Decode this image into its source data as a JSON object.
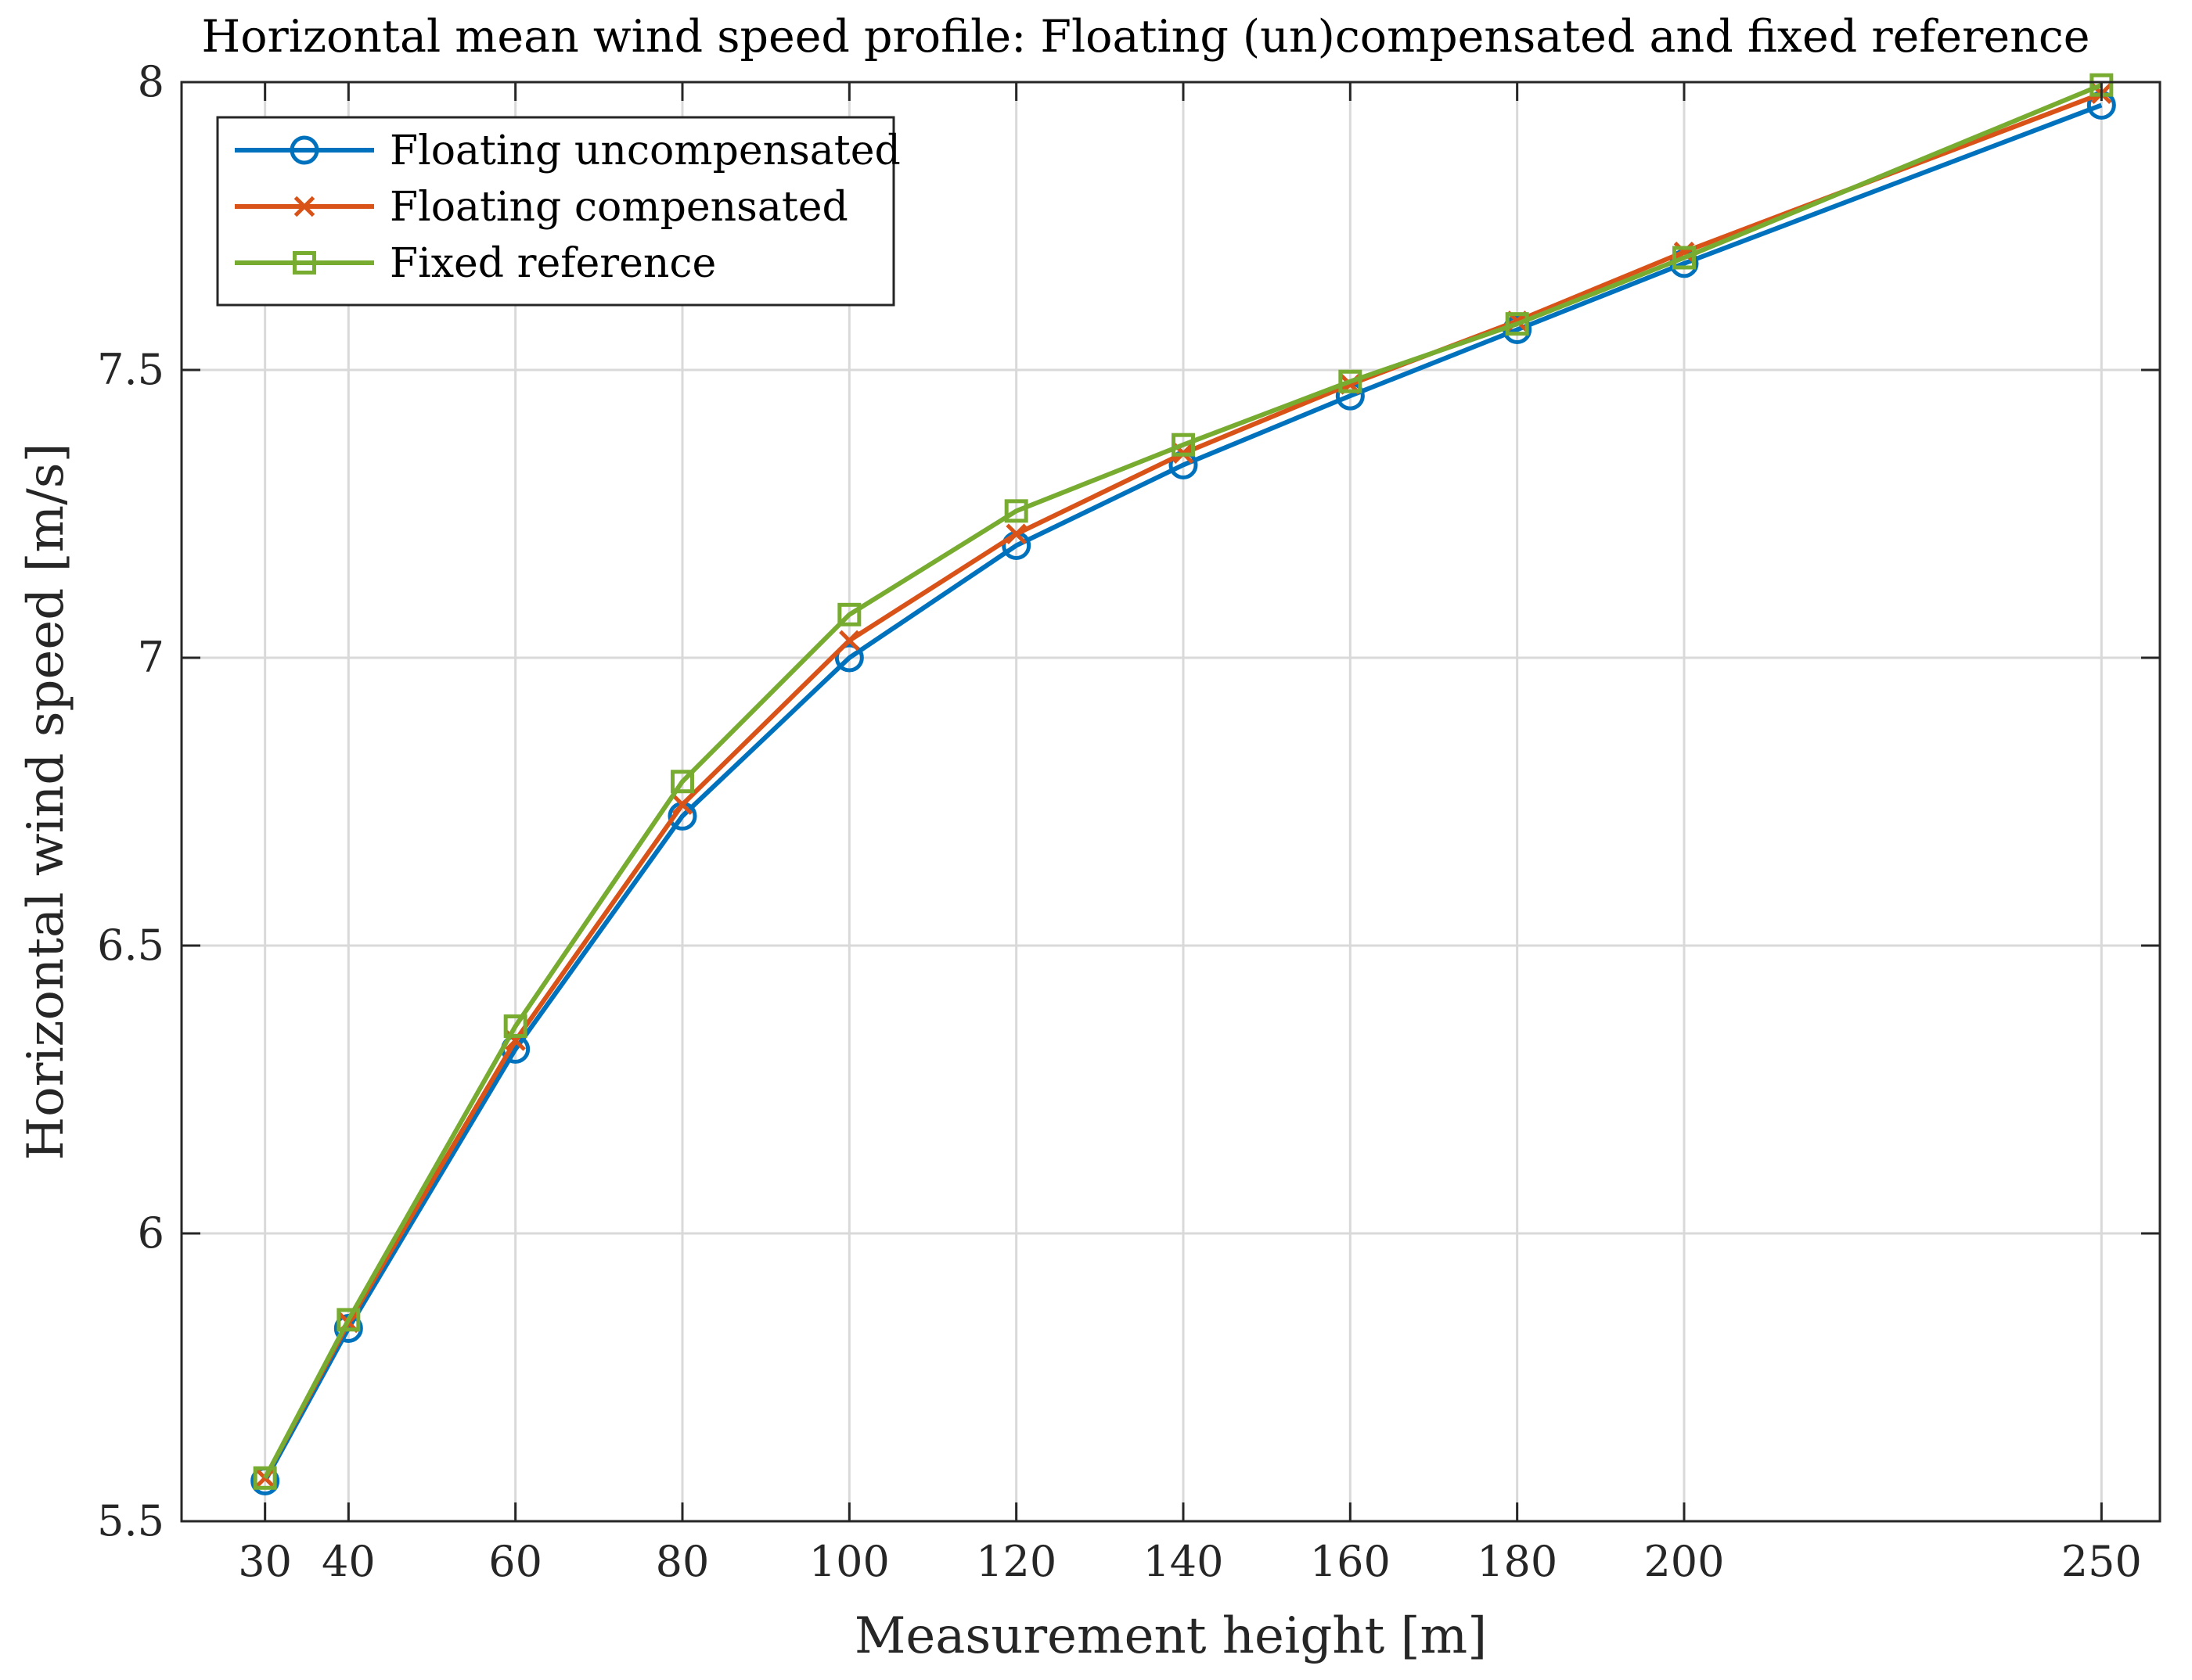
{
  "chart_data": {
    "type": "line",
    "title": "Horizontal mean wind speed profile: Floating (un)compensated and fixed reference",
    "xlabel": "Measurement height [m]",
    "ylabel": "Horizontal wind speed [m/s]",
    "x": [
      30,
      40,
      60,
      80,
      100,
      120,
      140,
      160,
      180,
      200,
      250
    ],
    "x_ticks": [
      "30",
      "40",
      "60",
      "80",
      "100",
      "120",
      "140",
      "160",
      "180",
      "200",
      "250"
    ],
    "y_ticks": [
      "5.5",
      "6",
      "6.5",
      "7",
      "7.5",
      "8"
    ],
    "xlim": [
      20,
      257
    ],
    "ylim": [
      5.5,
      8
    ],
    "grid": true,
    "legend_position": "top-left",
    "series": [
      {
        "name": "Floating uncompensated",
        "marker": "circle",
        "color": "#0072BD",
        "values": [
          5.57,
          5.835,
          6.32,
          6.725,
          7.0,
          7.195,
          7.335,
          7.455,
          7.57,
          7.685,
          7.96
        ]
      },
      {
        "name": "Floating compensated",
        "marker": "x",
        "color": "#D95319",
        "values": [
          5.575,
          5.845,
          6.335,
          6.745,
          7.03,
          7.215,
          7.355,
          7.475,
          7.585,
          7.705,
          7.98
        ]
      },
      {
        "name": "Fixed reference",
        "marker": "square",
        "color": "#77AC30",
        "values": [
          5.575,
          5.85,
          6.36,
          6.785,
          7.075,
          7.255,
          7.37,
          7.48,
          7.58,
          7.695,
          7.995
        ]
      }
    ]
  }
}
